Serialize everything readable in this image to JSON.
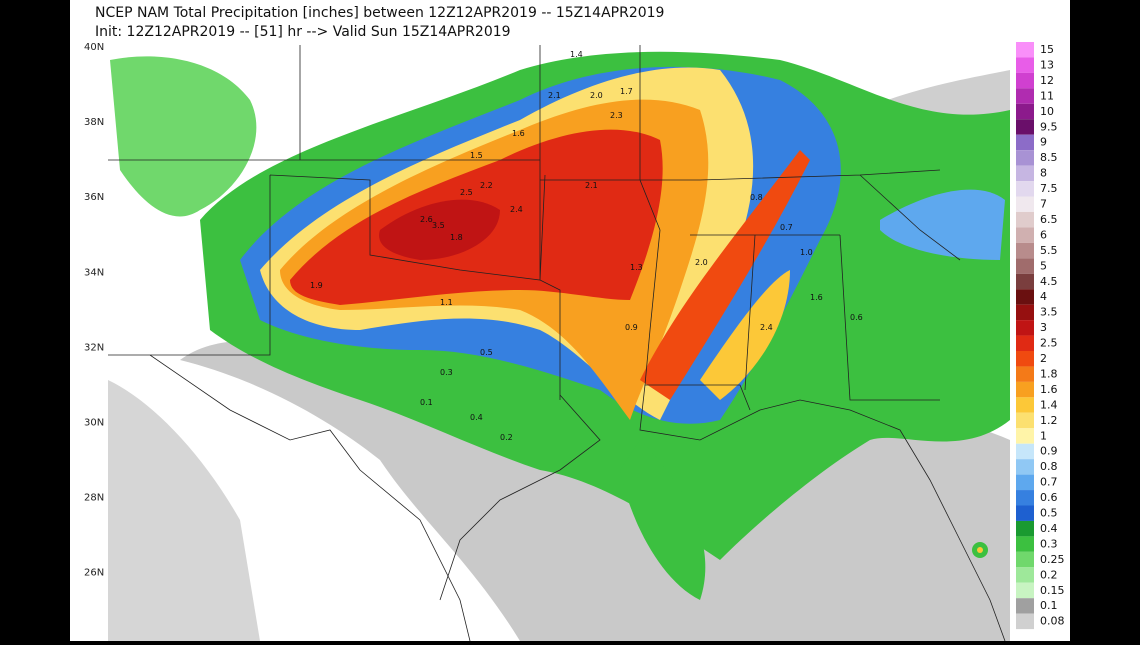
{
  "header": {
    "title": "NCEP NAM Total Precipitation [inches] between 12Z12APR2019 -- 15Z14APR2019",
    "subtitle": "Init: 12Z12APR2019 -- [51] hr --> Valid Sun 15Z14APR2019"
  },
  "latitudes": [
    "40N",
    "38N",
    "36N",
    "34N",
    "32N",
    "30N",
    "28N",
    "26N"
  ],
  "colorbar": {
    "levels": [
      "15",
      "13",
      "12",
      "11",
      "10",
      "9.5",
      "9",
      "8.5",
      "8",
      "7.5",
      "7",
      "6.5",
      "6",
      "5.5",
      "5",
      "4.5",
      "4",
      "3.5",
      "3",
      "2.5",
      "2",
      "1.8",
      "1.6",
      "1.4",
      "1.2",
      "1",
      "0.9",
      "0.8",
      "0.7",
      "0.6",
      "0.5",
      "0.4",
      "0.3",
      "0.25",
      "0.2",
      "0.15",
      "0.1",
      "0.08"
    ],
    "colors": [
      "#f98ff9",
      "#e85de8",
      "#d040d0",
      "#b02cb0",
      "#8c1a8c",
      "#6a0f6a",
      "#8c6cc8",
      "#a892d4",
      "#c6b6e2",
      "#e2d8ee",
      "#f0e8ee",
      "#e0cccc",
      "#d0b0b0",
      "#b88c8c",
      "#a06c6c",
      "#7a3e3e",
      "#6a1010",
      "#961010",
      "#c01414",
      "#e02a14",
      "#f04a10",
      "#f47a18",
      "#f8a020",
      "#fcc838",
      "#fce070",
      "#fff4a8",
      "#c6e6fa",
      "#90c8f4",
      "#5ea8ee",
      "#3680e0",
      "#1e60d0",
      "#1a9a30",
      "#3cc040",
      "#70d86c",
      "#9ee89a",
      "#c8f4c2",
      "#a0a0a0",
      "#d0d0d0"
    ]
  },
  "map_labels": [
    "1.4",
    "2.1",
    "2.0",
    "1.7",
    "2.3",
    "1.6",
    "1.5",
    "2.5",
    "2.2",
    "2.4",
    "1.8",
    "2.6",
    "3.5",
    "2.1",
    "1.3",
    "1.9",
    "1.1",
    "0.9",
    "0.5",
    "0.3",
    "0.1",
    "0.2",
    "0.4",
    "0.7",
    "1.0",
    "2.0",
    "2.4",
    "1.6",
    "0.8",
    "0.6"
  ]
}
